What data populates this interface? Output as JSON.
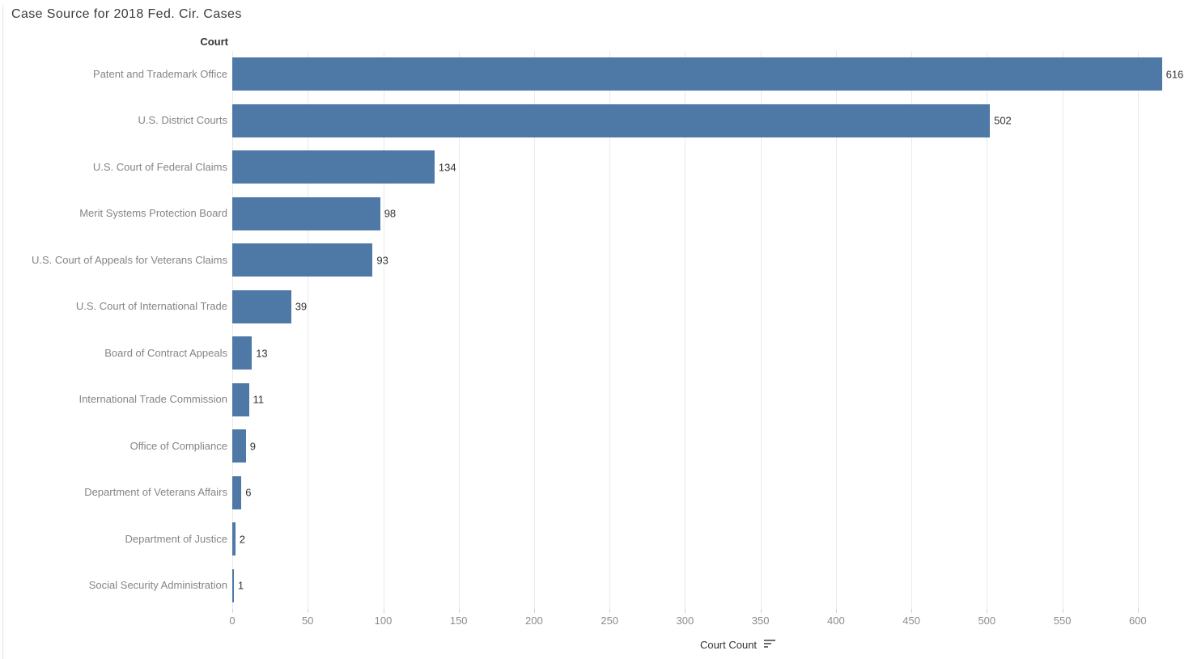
{
  "chart_data": {
    "type": "bar",
    "orientation": "horizontal",
    "title": "Case Source for 2018 Fed. Cir. Cases",
    "row_header": "Court",
    "xlabel": "Court Count",
    "sort_indicator": "descending",
    "categories": [
      "Patent and Trademark Office",
      "U.S. District Courts",
      "U.S. Court of Federal Claims",
      "Merit Systems Protection Board",
      "U.S. Court of Appeals for Veterans Claims",
      "U.S. Court of International Trade",
      "Board of Contract Appeals",
      "International Trade Commission",
      "Office of Compliance",
      "Department of Veterans Affairs",
      "Department of Justice",
      "Social Security Administration"
    ],
    "values": [
      616,
      502,
      134,
      98,
      93,
      39,
      13,
      11,
      9,
      6,
      2,
      1
    ],
    "value_labels": [
      "616",
      "502",
      "134",
      "98",
      "93",
      "39",
      "13",
      "11",
      "9",
      "6",
      "2",
      "1"
    ],
    "xticks": [
      0,
      50,
      100,
      150,
      200,
      250,
      300,
      350,
      400,
      450,
      500,
      550,
      600
    ],
    "xlim": [
      0,
      639
    ],
    "grid": "vertical",
    "legend": "none",
    "bar_color": "#4e79a7"
  },
  "styles": {
    "bar_color": "#4e79a7",
    "gridline_color": "#e9e9e9",
    "tick_mark_color": "#d2d2d2",
    "title_color": "#3b3b3b",
    "header_color": "#333333",
    "category_label_color": "#858585",
    "value_label_color": "#333333",
    "tick_label_color": "#8c8c8c",
    "pane_border_color": "#e3e3e3"
  }
}
